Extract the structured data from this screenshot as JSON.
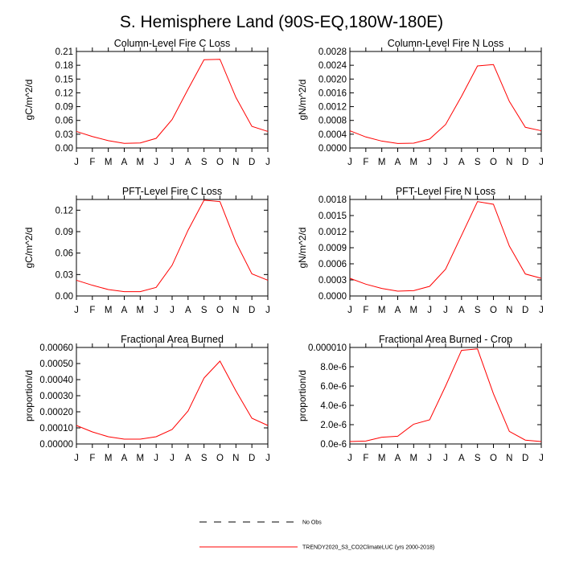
{
  "title": "S. Hemisphere Land (90S-EQ,180W-180E)",
  "months": [
    "J",
    "F",
    "M",
    "A",
    "M",
    "J",
    "J",
    "A",
    "S",
    "O",
    "N",
    "D",
    "J"
  ],
  "legend": [
    {
      "label": "No Obs",
      "style": "dashed",
      "color": "#000000"
    },
    {
      "label": "TRENDY2020_S3_CO2ClimateLUC (yrs 2000-2018)",
      "style": "solid",
      "color": "#ff0000"
    }
  ],
  "chart_data": [
    {
      "type": "line",
      "title": "Column-Level Fire C Loss",
      "ylabel": "gC/m^2/d",
      "xlabel": "",
      "ylim": [
        0,
        0.21
      ],
      "yticks": [
        "0.00",
        "0.03",
        "0.06",
        "0.09",
        "0.12",
        "0.15",
        "0.18",
        "0.21"
      ],
      "categories": [
        "J",
        "F",
        "M",
        "A",
        "M",
        "J",
        "J",
        "A",
        "S",
        "O",
        "N",
        "D",
        "J"
      ],
      "series": [
        {
          "name": "TRENDY2020_S3_CO2ClimateLUC (yrs 2000-2018)",
          "color": "#ff0000",
          "values": [
            0.036,
            0.025,
            0.016,
            0.01,
            0.011,
            0.021,
            0.062,
            0.128,
            0.192,
            0.193,
            0.11,
            0.047,
            0.036
          ]
        }
      ]
    },
    {
      "type": "line",
      "title": "Column-Level Fire N Loss",
      "ylabel": "gN/m^2/d",
      "xlabel": "",
      "ylim": [
        0,
        0.0028
      ],
      "yticks": [
        "0.0000",
        "0.0004",
        "0.0008",
        "0.0012",
        "0.0016",
        "0.0020",
        "0.0024",
        "0.0028"
      ],
      "categories": [
        "J",
        "F",
        "M",
        "A",
        "M",
        "J",
        "J",
        "A",
        "S",
        "O",
        "N",
        "D",
        "J"
      ],
      "series": [
        {
          "name": "TRENDY2020_S3_CO2ClimateLUC (yrs 2000-2018)",
          "color": "#ff0000",
          "values": [
            0.0005,
            0.00032,
            0.0002,
            0.00013,
            0.00014,
            0.00026,
            0.00068,
            0.0015,
            0.00238,
            0.00242,
            0.00135,
            0.0006,
            0.0005
          ]
        }
      ]
    },
    {
      "type": "line",
      "title": "PFT-Level Fire C Loss",
      "ylabel": "gC/m^2/d",
      "xlabel": "",
      "ylim": [
        0,
        0.135
      ],
      "yticks": [
        "0.00",
        "0.03",
        "0.06",
        "0.09",
        "0.12"
      ],
      "categories": [
        "J",
        "F",
        "M",
        "A",
        "M",
        "J",
        "J",
        "A",
        "S",
        "O",
        "N",
        "D",
        "J"
      ],
      "series": [
        {
          "name": "TRENDY2020_S3_CO2ClimateLUC (yrs 2000-2018)",
          "color": "#ff0000",
          "values": [
            0.022,
            0.015,
            0.009,
            0.006,
            0.006,
            0.012,
            0.043,
            0.092,
            0.134,
            0.132,
            0.075,
            0.031,
            0.022
          ]
        }
      ]
    },
    {
      "type": "line",
      "title": "PFT-Level Fire N Loss",
      "ylabel": "gN/m^2/d",
      "xlabel": "",
      "ylim": [
        0,
        0.0018
      ],
      "yticks": [
        "0.0000",
        "0.0003",
        "0.0006",
        "0.0009",
        "0.0012",
        "0.0015",
        "0.0018"
      ],
      "categories": [
        "J",
        "F",
        "M",
        "A",
        "M",
        "J",
        "J",
        "A",
        "S",
        "O",
        "N",
        "D",
        "J"
      ],
      "series": [
        {
          "name": "TRENDY2020_S3_CO2ClimateLUC (yrs 2000-2018)",
          "color": "#ff0000",
          "values": [
            0.00033,
            0.00022,
            0.00014,
            9e-05,
            0.0001,
            0.00018,
            0.0005,
            0.00113,
            0.00176,
            0.00171,
            0.00093,
            0.00041,
            0.00033
          ]
        }
      ]
    },
    {
      "type": "line",
      "title": "Fractional Area Burned",
      "ylabel": "proportion/d",
      "xlabel": "",
      "ylim": [
        0,
        0.0006
      ],
      "yticks": [
        "0.00000",
        "0.00010",
        "0.00020",
        "0.00030",
        "0.00040",
        "0.00050",
        "0.00060"
      ],
      "categories": [
        "J",
        "F",
        "M",
        "A",
        "M",
        "J",
        "J",
        "A",
        "S",
        "O",
        "N",
        "D",
        "J"
      ],
      "series": [
        {
          "name": "TRENDY2020_S3_CO2ClimateLUC (yrs 2000-2018)",
          "color": "#ff0000",
          "values": [
            0.000115,
            7.5e-05,
            4.5e-05,
            3e-05,
            3e-05,
            4.5e-05,
            9e-05,
            0.000205,
            0.00041,
            0.000515,
            0.00033,
            0.00016,
            0.000115
          ]
        }
      ]
    },
    {
      "type": "line",
      "title": "Fractional Area Burned - Crop",
      "ylabel": "proportion/d",
      "xlabel": "",
      "ylim": [
        0,
        1e-05
      ],
      "yticks": [
        "0.0e-6",
        "2.0e-6",
        "4.0e-6",
        "6.0e-6",
        "8.0e-6",
        "0.000010"
      ],
      "categories": [
        "J",
        "F",
        "M",
        "A",
        "M",
        "J",
        "J",
        "A",
        "S",
        "O",
        "N",
        "D",
        "J"
      ],
      "series": [
        {
          "name": "TRENDY2020_S3_CO2ClimateLUC (yrs 2000-2018)",
          "color": "#ff0000",
          "values": [
            2.5e-07,
            3e-07,
            7e-07,
            8e-07,
            2.05e-06,
            2.5e-06,
            6e-06,
            9.7e-06,
            9.85e-06,
            5.2e-06,
            1.3e-06,
            4e-07,
            2.5e-07
          ]
        }
      ]
    }
  ]
}
